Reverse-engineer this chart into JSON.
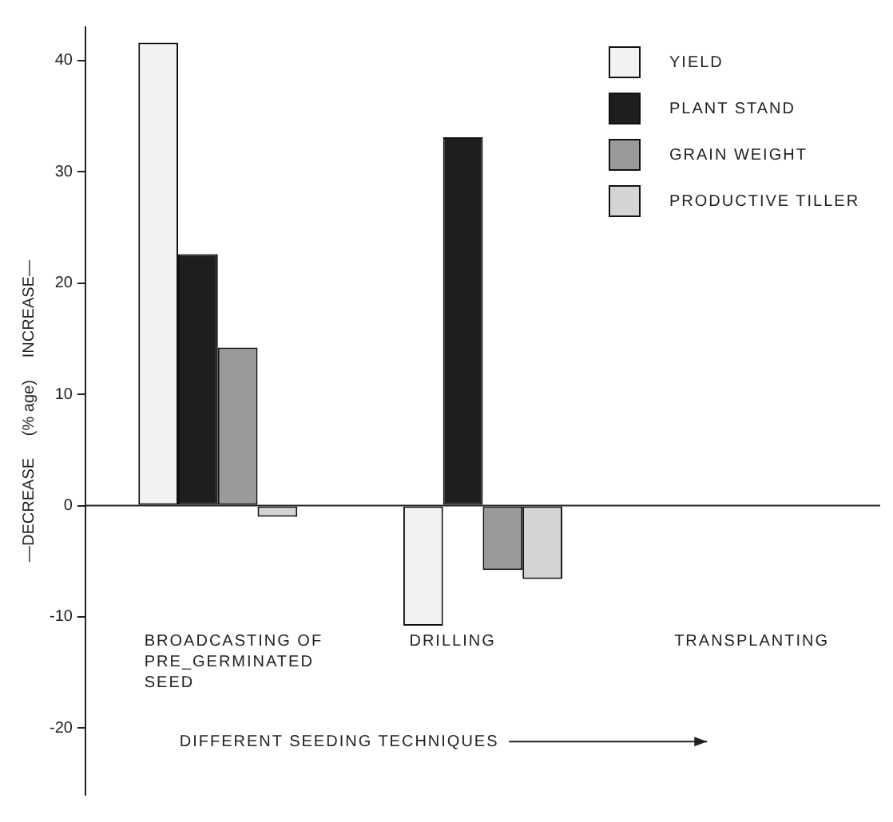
{
  "chart_data": {
    "type": "bar",
    "xlabel": "DIFFERENT SEEDING TECHNIQUES",
    "ylabel": "—DECREASE     (% age)     INCREASE—",
    "categories": [
      "BROADCASTING OF PRE_GERMINATED SEED",
      "DRILLING",
      "TRANSPLANTING"
    ],
    "series": [
      {
        "name": "YIELD",
        "color": "#f2f2f2",
        "values": [
          41.6,
          -10.8,
          null
        ]
      },
      {
        "name": "PLANT STAND",
        "color": "#1e1e1e",
        "values": [
          22.6,
          33.1,
          null
        ]
      },
      {
        "name": "GRAIN WEIGHT",
        "color": "#9a9a9a",
        "values": [
          14.2,
          -5.8,
          null
        ]
      },
      {
        "name": "PRODUCTIVE TILLER",
        "color": "#d4d4d4",
        "values": [
          -1.0,
          -6.6,
          null
        ]
      }
    ],
    "ylim": [
      -26,
      43
    ],
    "yticks": [
      -20,
      -10,
      0,
      10,
      20,
      30,
      40
    ],
    "ref_lines": [
      {
        "axis": "y",
        "value": 0
      }
    ],
    "grid": false,
    "legend": "top right"
  }
}
